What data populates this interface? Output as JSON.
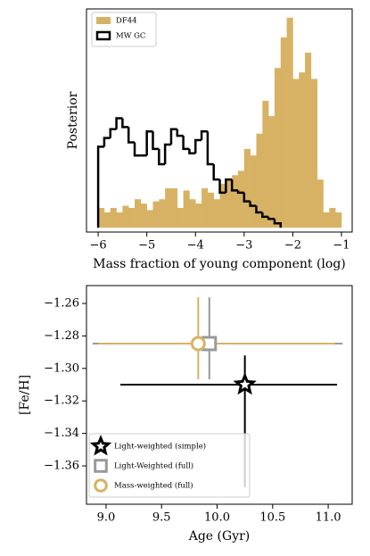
{
  "chart_data": [
    {
      "type": "histogram",
      "xlabel": "Mass fraction of young component (log)",
      "ylabel": "Posterior",
      "xlim": [
        -6.24,
        -0.78
      ],
      "ylim": [
        -2,
        100
      ],
      "xticks": [
        {
          "value": -6,
          "label": "−6"
        },
        {
          "value": -5,
          "label": "−5"
        },
        {
          "value": -4,
          "label": "−4"
        },
        {
          "value": -3,
          "label": "−3"
        },
        {
          "value": -2,
          "label": "−2"
        },
        {
          "value": -1,
          "label": "−1"
        }
      ],
      "legend": "upper left",
      "series": [
        {
          "name": "DF44",
          "color": "#d8b264",
          "style": "filled",
          "bins": [
            -6,
            -5.875,
            -5.75,
            -5.625,
            -5.5,
            -5.375,
            -5.25,
            -5.125,
            -5,
            -4.875,
            -4.75,
            -4.625,
            -4.5,
            -4.375,
            -4.25,
            -4.125,
            -4,
            -3.875,
            -3.75,
            -3.625,
            -3.5,
            -3.375,
            -3.25,
            -3.125,
            -3,
            -2.875,
            -2.75,
            -2.625,
            -2.5,
            -2.375,
            -2.25,
            -2.125,
            -2,
            -1.875,
            -1.75,
            -1.625,
            -1.5,
            -1.375,
            -1.25,
            -1.125,
            -1
          ],
          "values": [
            9,
            7,
            9,
            7,
            10,
            9,
            13,
            11,
            8,
            12,
            13,
            18,
            18,
            9,
            17,
            13,
            11,
            18,
            16,
            13,
            20,
            22,
            24,
            26,
            36,
            33,
            43,
            58,
            51,
            73,
            87,
            96,
            68,
            71,
            80,
            68,
            22,
            7,
            9,
            7
          ]
        },
        {
          "name": "MW GC",
          "color": "#000000",
          "style": "step",
          "bins": [
            -6,
            -5.875,
            -5.75,
            -5.625,
            -5.5,
            -5.375,
            -5.25,
            -5.125,
            -5,
            -4.875,
            -4.75,
            -4.625,
            -4.5,
            -4.375,
            -4.25,
            -4.125,
            -4,
            -3.875,
            -3.75,
            -3.625,
            -3.5,
            -3.375,
            -3.25,
            -3.125,
            -3,
            -2.875,
            -2.75,
            -2.625,
            -2.5,
            -2.375,
            -2.25
          ],
          "values": [
            37,
            41,
            45,
            50,
            46,
            39,
            33,
            33,
            44,
            36,
            29,
            38,
            45,
            42,
            36,
            34,
            40,
            44,
            29,
            22,
            16,
            22,
            17,
            16,
            12,
            10,
            7,
            5,
            4,
            2
          ]
        }
      ]
    },
    {
      "type": "errorbar",
      "xlabel": "Age (Gyr)",
      "ylabel": "[Fe/H]",
      "xlim": [
        8.824,
        11.216
      ],
      "ylim": [
        -1.3836,
        -1.249
      ],
      "xticks": [
        {
          "value": 9.0,
          "label": "9.0"
        },
        {
          "value": 9.5,
          "label": "9.5"
        },
        {
          "value": 10.0,
          "label": "10.0"
        },
        {
          "value": 10.5,
          "label": "10.5"
        },
        {
          "value": 11.0,
          "label": "11.0"
        }
      ],
      "yticks": [
        {
          "value": -1.26,
          "label": "−1.26"
        },
        {
          "value": -1.28,
          "label": "−1.28"
        },
        {
          "value": -1.3,
          "label": "−1.30"
        },
        {
          "value": -1.32,
          "label": "−1.32"
        },
        {
          "value": -1.34,
          "label": "−1.34"
        },
        {
          "value": -1.36,
          "label": "−1.36"
        }
      ],
      "legend": "lower left",
      "series": [
        {
          "name": "Light-weighted (simple)",
          "color": "#000000",
          "marker": "star",
          "x": [
            10.25
          ],
          "y": [
            -1.31
          ],
          "xerr_minus": [
            1.12
          ],
          "xerr_plus": [
            0.83
          ],
          "yerr_minus": [
            0.063
          ],
          "yerr_plus": [
            0.018
          ]
        },
        {
          "name": "Light-Weighted (full)",
          "color": "#999999",
          "marker": "square",
          "x": [
            9.93
          ],
          "y": [
            -1.2847
          ],
          "xerr_minus": [
            1.05
          ],
          "xerr_plus": [
            1.2
          ],
          "yerr_minus": [
            0.022
          ],
          "yerr_plus": [
            0.0285
          ]
        },
        {
          "name": "Mass-weighted (full)",
          "color": "#d8b264",
          "marker": "circle",
          "x": [
            9.83
          ],
          "y": [
            -1.2847
          ],
          "xerr_minus": [
            0.9
          ],
          "xerr_plus": [
            1.23
          ],
          "yerr_minus": [
            0.022
          ],
          "yerr_plus": [
            0.0285
          ]
        }
      ]
    }
  ]
}
